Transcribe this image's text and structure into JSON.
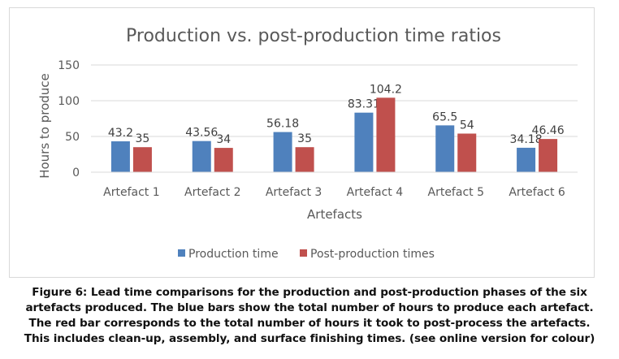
{
  "chart_data": {
    "type": "bar",
    "title": "Production vs. post-production time ratios",
    "xlabel": "Artefacts",
    "ylabel": "Hours to produce",
    "ylim": [
      0,
      150
    ],
    "yticks": [
      0,
      50,
      100,
      150
    ],
    "ytick_labels": [
      "0",
      "50",
      "100",
      "150"
    ],
    "grid": true,
    "legend_position": "bottom",
    "categories": [
      "Artefact 1",
      "Artefact 2",
      "Artefact 3",
      "Artefact 4",
      "Artefact 5",
      "Artefact 6"
    ],
    "series": [
      {
        "name": "Production time",
        "color": "#4f81bd",
        "values": [
          43.2,
          43.56,
          56.18,
          83.31,
          65.5,
          34.18
        ],
        "labels": [
          "43.2",
          "43.56",
          "56.18",
          "83.31",
          "65.5",
          "34.18"
        ]
      },
      {
        "name": "Post-production times",
        "color": "#c0504d",
        "values": [
          35,
          34,
          35,
          104.2,
          54,
          46.46
        ],
        "labels": [
          "35",
          "34",
          "35",
          "104.2",
          "54",
          "46.46"
        ]
      }
    ]
  },
  "caption": {
    "lines": [
      "Figure 6: Lead time comparisons for the production and post-production phases of the six",
      "artefacts produced. The blue bars show the total number of hours to produce each artefact.",
      "The red bar corresponds to the total number of hours it took to post-process the artefacts.",
      "This includes clean-up, assembly, and surface finishing times. (see online version for colour)"
    ]
  }
}
